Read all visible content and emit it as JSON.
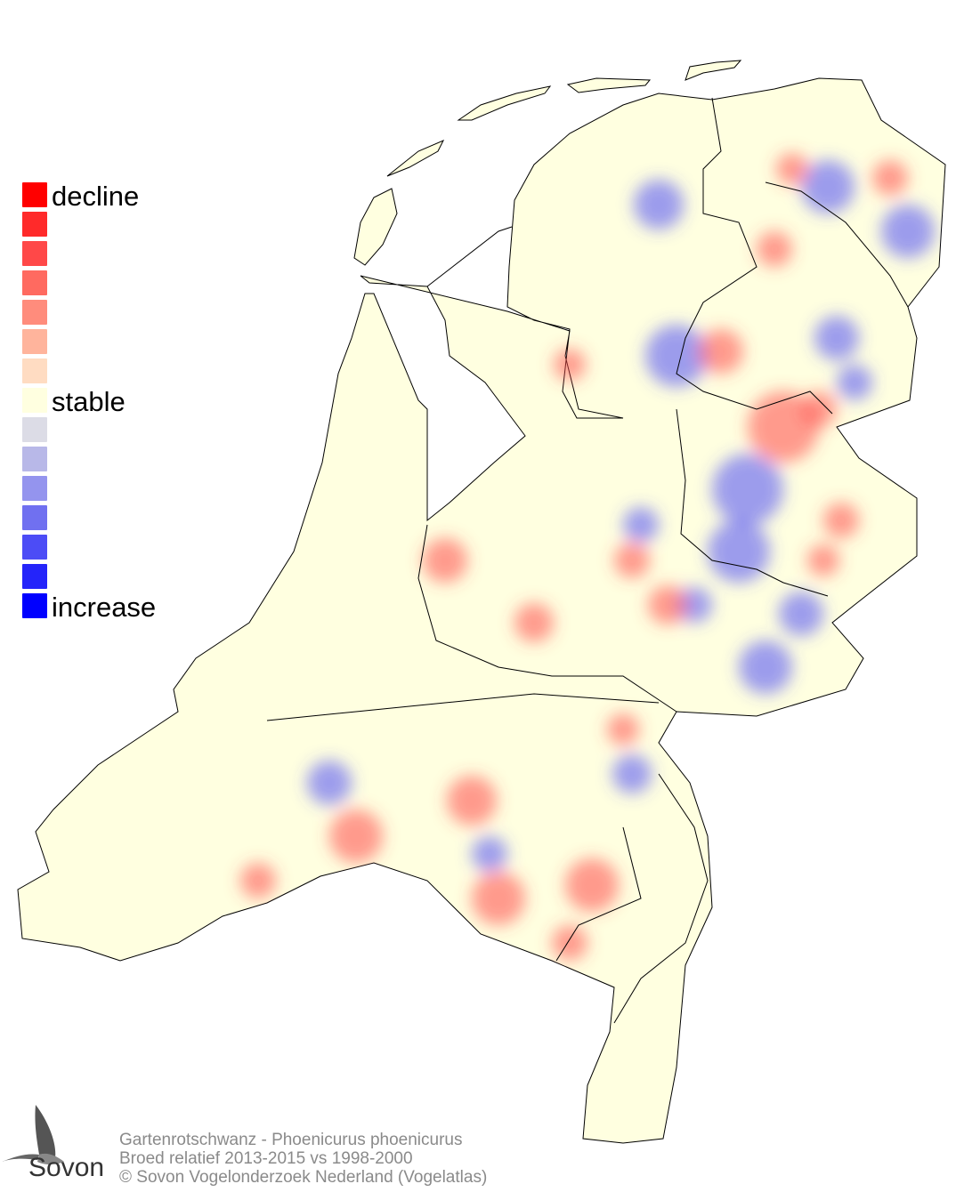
{
  "legend": {
    "labels": {
      "top": "decline",
      "middle": "stable",
      "bottom": "increase"
    },
    "swatches": [
      "#ff0000",
      "#ff2a2a",
      "#ff4848",
      "#ff6a60",
      "#ff8c7c",
      "#ffb49c",
      "#ffdcc2",
      "#ffffe0",
      "#dcdce6",
      "#b8b8e8",
      "#9494ee",
      "#7070f0",
      "#4c4cf6",
      "#2424fa",
      "#0000ff"
    ]
  },
  "map": {
    "base_color": "#ffffe0",
    "decline_color": "#ff4848",
    "increase_color": "#4c4cf6"
  },
  "caption": {
    "line1": "Gartenrotschwanz - Phoenicurus phoenicurus",
    "line2": "Broed relatief 2013-2015 vs 1998-2000",
    "line3": "© Sovon Vogelonderzoek Nederland (Vogelatlas)"
  },
  "logo": {
    "text": "Sovon"
  }
}
